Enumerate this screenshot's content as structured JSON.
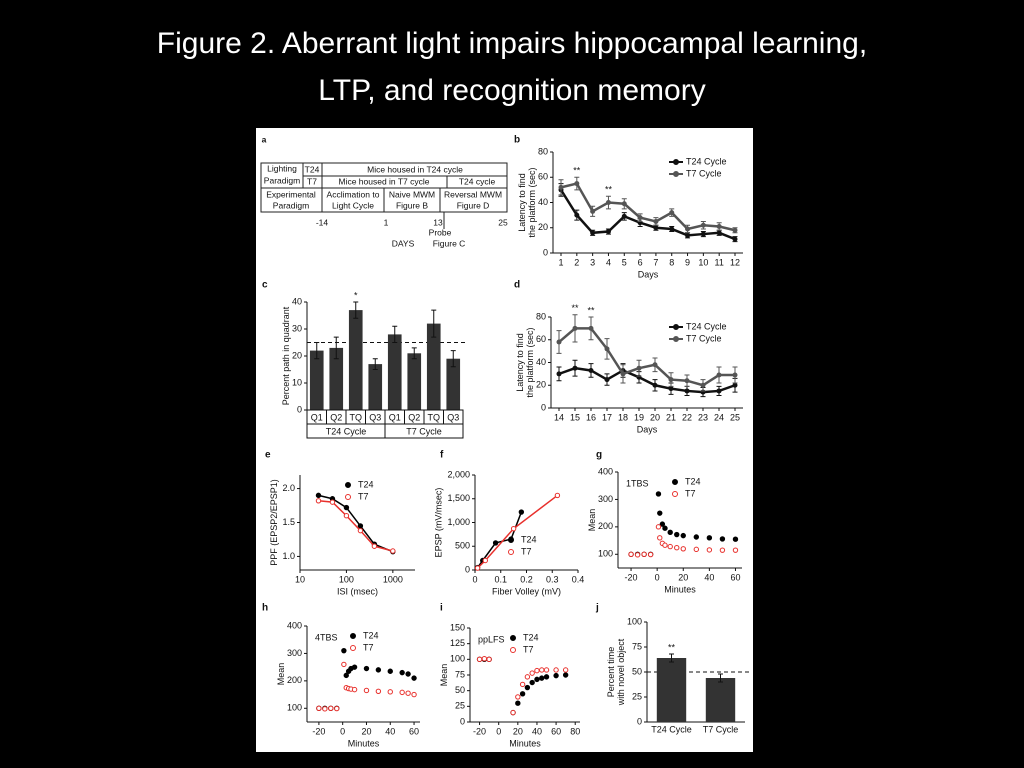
{
  "title_lines": [
    "Figure 2. Aberrant light impairs hippocampal learning,",
    "LTP, and recognition memory"
  ],
  "diagram": {
    "panel": "a",
    "lighting_label": [
      "Lighting",
      "Paradigm"
    ],
    "t24_label": "T24",
    "t24_text": "Mice housed in T24 cycle",
    "t7_label": "T7",
    "t7_text": "Mice housed in T7 cycle",
    "t7_after": "T24 cycle",
    "experimental_label": [
      "Experimental",
      "Paradigm"
    ],
    "acclimation": [
      "Acclimation to",
      "Light Cycle"
    ],
    "naive": [
      "Naive MWM",
      "Figure B"
    ],
    "reversal": [
      "Reversal MWM",
      "Figure D"
    ],
    "days": [
      -14,
      1,
      13,
      25
    ],
    "probe": "Probe",
    "days_label": "DAYS",
    "figure_c": "Figure C"
  },
  "chart_data": [
    {
      "panel": "b",
      "type": "line",
      "categories": [
        1,
        2,
        3,
        4,
        5,
        6,
        7,
        8,
        9,
        10,
        11,
        12
      ],
      "xlabel": "Days",
      "ylabel": [
        "Latency to find",
        "the platform (sec)"
      ],
      "ylim": [
        0,
        80
      ],
      "yticks": [
        0,
        20,
        40,
        60,
        80
      ],
      "legend": "upper right",
      "series": [
        {
          "name": "T24 Cycle",
          "color": "#111111",
          "values": [
            50,
            30,
            16,
            17,
            29,
            24,
            20,
            19,
            14,
            15,
            16,
            11
          ],
          "errors": [
            5,
            4,
            2,
            2,
            3,
            3,
            2,
            2,
            2,
            2,
            2,
            2
          ]
        },
        {
          "name": "T7 Cycle",
          "color": "#555555",
          "values": [
            52,
            55,
            33,
            40,
            39,
            28,
            25,
            32,
            19,
            22,
            21,
            18
          ],
          "errors": [
            6,
            5,
            4,
            5,
            4,
            3,
            3,
            3,
            3,
            3,
            3,
            2
          ]
        }
      ],
      "annotations": [
        {
          "text": "**",
          "index": 1
        },
        {
          "text": "**",
          "index": 3
        }
      ]
    },
    {
      "panel": "c",
      "type": "bar",
      "categories": [
        "Q1",
        "Q2",
        "TQ",
        "Q3",
        "Q1",
        "Q2",
        "TQ",
        "Q3"
      ],
      "groups": [
        "T24 Cycle",
        "T7 Cycle"
      ],
      "values": [
        22,
        23,
        37,
        17,
        28,
        21,
        32,
        19
      ],
      "errors": [
        3,
        4,
        3,
        2,
        3,
        2,
        5,
        3
      ],
      "color": "#333333",
      "ylim": [
        0,
        40
      ],
      "yticks": [
        0,
        10,
        20,
        30,
        40
      ],
      "ylabel": "Percent path in quadrant",
      "reference_line": 25,
      "annotations": [
        {
          "text": "*",
          "index": 2
        }
      ]
    },
    {
      "panel": "d",
      "type": "line",
      "categories": [
        14,
        15,
        16,
        17,
        18,
        19,
        20,
        21,
        22,
        23,
        24,
        25
      ],
      "xlabel": "Days",
      "ylabel": [
        "Latency to find",
        "the platform (sec)"
      ],
      "ylim": [
        0,
        80
      ],
      "yticks": [
        0,
        20,
        40,
        60,
        80
      ],
      "legend": "upper right",
      "series": [
        {
          "name": "T24 Cycle",
          "color": "#111111",
          "values": [
            30,
            35,
            33,
            25,
            33,
            27,
            20,
            17,
            15,
            14,
            15,
            20
          ],
          "errors": [
            6,
            7,
            6,
            5,
            6,
            5,
            5,
            5,
            4,
            4,
            4,
            6
          ]
        },
        {
          "name": "T7 Cycle",
          "color": "#555555",
          "values": [
            58,
            70,
            70,
            52,
            30,
            35,
            38,
            25,
            24,
            20,
            29,
            29
          ],
          "errors": [
            10,
            12,
            10,
            9,
            8,
            7,
            6,
            6,
            5,
            5,
            7,
            7
          ]
        }
      ],
      "annotations": [
        {
          "text": "**",
          "index": 1
        },
        {
          "text": "**",
          "index": 2
        }
      ]
    },
    {
      "panel": "e",
      "type": "scatter",
      "xscale": "log",
      "xlim": [
        10,
        3000
      ],
      "xticks": [
        10,
        100,
        1000
      ],
      "ylim": [
        0.8,
        2.2
      ],
      "yticks": [
        {
          "value": 1,
          "label": "1.0"
        },
        1.5,
        {
          "value": 2,
          "label": "2.0"
        }
      ],
      "xlabel": "ISI (msec)",
      "ylabel": "PPF (EPSP2/EPSP1)",
      "connect_points": true,
      "legend": "upper right",
      "series": [
        {
          "name": "T24",
          "color": "#000000",
          "marker": "filled",
          "x": [
            25,
            50,
            100,
            200,
            400,
            1000
          ],
          "values": [
            1.9,
            1.85,
            1.72,
            1.45,
            1.18,
            1.07
          ]
        },
        {
          "name": "T7",
          "color": "#e8302c",
          "marker": "open",
          "x": [
            25,
            50,
            100,
            200,
            400,
            1000
          ],
          "values": [
            1.82,
            1.8,
            1.6,
            1.38,
            1.15,
            1.08
          ]
        }
      ]
    },
    {
      "panel": "f",
      "type": "scatter",
      "xlim": [
        0,
        0.4
      ],
      "xticks": [
        0,
        0.1,
        0.2,
        0.3,
        0.4
      ],
      "ylim": [
        0,
        2000
      ],
      "yticks": [
        0,
        500,
        {
          "value": 1000,
          "label": "1,000"
        },
        {
          "value": 1500,
          "label": "1,500"
        },
        {
          "value": 2000,
          "label": "2,000"
        }
      ],
      "xlabel": "Fiber Volley (mV)",
      "ylabel": "EPSP (mV/msec)",
      "connect_points": true,
      "legend": "lower right",
      "series": [
        {
          "name": "T24",
          "color": "#000000",
          "marker": "filled",
          "x": [
            0.01,
            0.03,
            0.08,
            0.14,
            0.18
          ],
          "values": [
            50,
            200,
            570,
            650,
            1220
          ]
        },
        {
          "name": "T7",
          "color": "#e8302c",
          "marker": "open",
          "x": [
            0.01,
            0.04,
            0.15,
            0.32
          ],
          "values": [
            40,
            200,
            870,
            1570
          ]
        }
      ]
    },
    {
      "panel": "g",
      "type": "scatter",
      "inset_title": "1TBS",
      "xlim": [
        -30,
        65
      ],
      "xticks": [
        -20,
        0,
        20,
        40,
        60
      ],
      "ylim": [
        50,
        400
      ],
      "yticks": [
        100,
        200,
        300,
        400
      ],
      "xlabel": "Minutes",
      "ylabel": "Mean",
      "legend": "upper right",
      "series": [
        {
          "name": "T24",
          "color": "#000000",
          "marker": "filled",
          "x": [
            -20,
            -15,
            -10,
            -5,
            1,
            2,
            4,
            6,
            10,
            15,
            20,
            30,
            40,
            50,
            60
          ],
          "values": [
            100,
            100,
            100,
            100,
            320,
            250,
            210,
            195,
            180,
            172,
            168,
            163,
            160,
            156,
            155
          ]
        },
        {
          "name": "T7",
          "color": "#e8302c",
          "marker": "open",
          "x": [
            -20,
            -15,
            -10,
            -5,
            1,
            2,
            4,
            6,
            10,
            15,
            20,
            30,
            40,
            50,
            60
          ],
          "values": [
            100,
            98,
            100,
            99,
            200,
            160,
            140,
            133,
            128,
            124,
            120,
            118,
            116,
            115,
            115
          ]
        }
      ]
    },
    {
      "panel": "h",
      "type": "scatter",
      "inset_title": "4TBS",
      "xlim": [
        -30,
        65
      ],
      "xticks": [
        -20,
        0,
        20,
        40,
        60
      ],
      "ylim": [
        50,
        400
      ],
      "yticks": [
        100,
        200,
        300,
        400
      ],
      "xlabel": "Minutes",
      "ylabel": "Mean",
      "legend": "upper right",
      "series": [
        {
          "name": "T24",
          "color": "#000000",
          "marker": "filled",
          "x": [
            -20,
            -15,
            -10,
            -5,
            1,
            3,
            5,
            7,
            10,
            20,
            30,
            40,
            50,
            55,
            60
          ],
          "values": [
            100,
            100,
            100,
            100,
            310,
            220,
            235,
            245,
            250,
            245,
            240,
            235,
            230,
            225,
            210
          ]
        },
        {
          "name": "T7",
          "color": "#e8302c",
          "marker": "open",
          "x": [
            -20,
            -15,
            -10,
            -5,
            1,
            3,
            5,
            7,
            10,
            20,
            30,
            40,
            50,
            55,
            60
          ],
          "values": [
            100,
            98,
            100,
            99,
            260,
            175,
            172,
            170,
            168,
            165,
            162,
            160,
            158,
            155,
            150
          ]
        }
      ]
    },
    {
      "panel": "i",
      "type": "scatter",
      "inset_title": "ppLFS",
      "xlim": [
        -30,
        85
      ],
      "xticks": [
        -20,
        0,
        20,
        40,
        60,
        80
      ],
      "ylim": [
        0,
        150
      ],
      "yticks": [
        0,
        25,
        50,
        75,
        100,
        125,
        150
      ],
      "xlabel": "Minutes",
      "ylabel": "Mean",
      "legend": "upper right",
      "series": [
        {
          "name": "T24",
          "color": "#000000",
          "marker": "filled",
          "x": [
            -20,
            -15,
            -10,
            15,
            20,
            25,
            30,
            35,
            40,
            45,
            50,
            60,
            70
          ],
          "values": [
            100,
            100,
            100,
            15,
            30,
            45,
            55,
            63,
            68,
            70,
            72,
            74,
            75
          ]
        },
        {
          "name": "T7",
          "color": "#e8302c",
          "marker": "open",
          "x": [
            -20,
            -15,
            -10,
            15,
            20,
            25,
            30,
            35,
            40,
            45,
            50,
            60,
            70
          ],
          "values": [
            100,
            101,
            100,
            15,
            40,
            60,
            72,
            78,
            82,
            83,
            83,
            83,
            83
          ]
        }
      ]
    },
    {
      "panel": "j",
      "type": "bar",
      "categories": [
        "T24 Cycle",
        "T7 Cycle"
      ],
      "values": [
        64,
        44
      ],
      "errors": [
        4,
        4
      ],
      "color": "#333333",
      "ylim": [
        0,
        100
      ],
      "yticks": [
        0,
        25,
        50,
        75,
        100
      ],
      "ylabel": [
        "Percent time",
        "with novel object"
      ],
      "reference_line": 50,
      "annotations": [
        {
          "text": "**",
          "index": 0
        }
      ]
    }
  ]
}
